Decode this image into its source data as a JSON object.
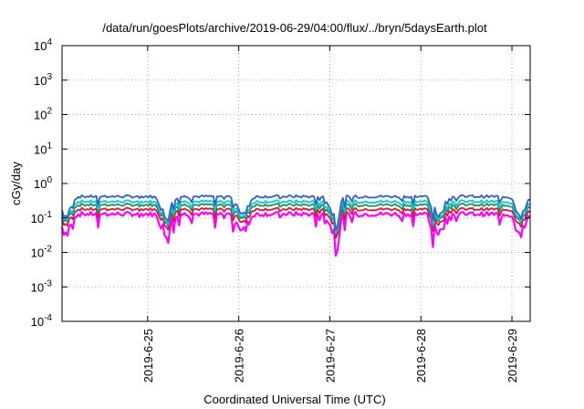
{
  "chart_data": {
    "type": "line",
    "title": "/data/run/goesPlots/archive/2019-06-29/04:00/flux/../bryn/5daysEarth.plot",
    "xlabel": "Coordinated Universal Time (UTC)",
    "ylabel": "cGy/day",
    "yscale": "log",
    "ylim": [
      0.0001,
      10000
    ],
    "xlim": [
      -0.94,
      4.2
    ],
    "grid": true,
    "x_ticks": [
      {
        "x": 0,
        "label": "2019-6-25"
      },
      {
        "x": 1,
        "label": "2019-6-26"
      },
      {
        "x": 2,
        "label": "2019-6-27"
      },
      {
        "x": 3,
        "label": "2019-6-28"
      },
      {
        "x": 4,
        "label": "2019-6-29"
      }
    ],
    "y_ticks": [
      {
        "v": 0.0001,
        "mant": "10",
        "exp": "-4"
      },
      {
        "v": 0.001,
        "mant": "10",
        "exp": "-3"
      },
      {
        "v": 0.01,
        "mant": "10",
        "exp": "-2"
      },
      {
        "v": 0.1,
        "mant": "10",
        "exp": "-1"
      },
      {
        "v": 1,
        "mant": "10",
        "exp": "0"
      },
      {
        "v": 10,
        "mant": "10",
        "exp": "1"
      },
      {
        "v": 100,
        "mant": "10",
        "exp": "2"
      },
      {
        "v": 1000,
        "mant": "10",
        "exp": "3"
      },
      {
        "v": 10000,
        "mant": "10",
        "exp": "4"
      }
    ],
    "dips": [
      -0.9,
      0.2,
      1.05,
      2.05,
      3.2,
      4.1
    ],
    "series": [
      {
        "color": "#ff00ff",
        "peak": 0.13,
        "dip": 0.04
      },
      {
        "color": "#dc143c",
        "peak": 0.18,
        "dip": 0.07
      },
      {
        "color": "#2e8b57",
        "peak": 0.24,
        "dip": 0.09
      },
      {
        "color": "#00ced1",
        "peak": 0.3,
        "dip": 0.1
      },
      {
        "color": "#3060c8",
        "peak": 0.42,
        "dip": 0.12
      }
    ]
  }
}
